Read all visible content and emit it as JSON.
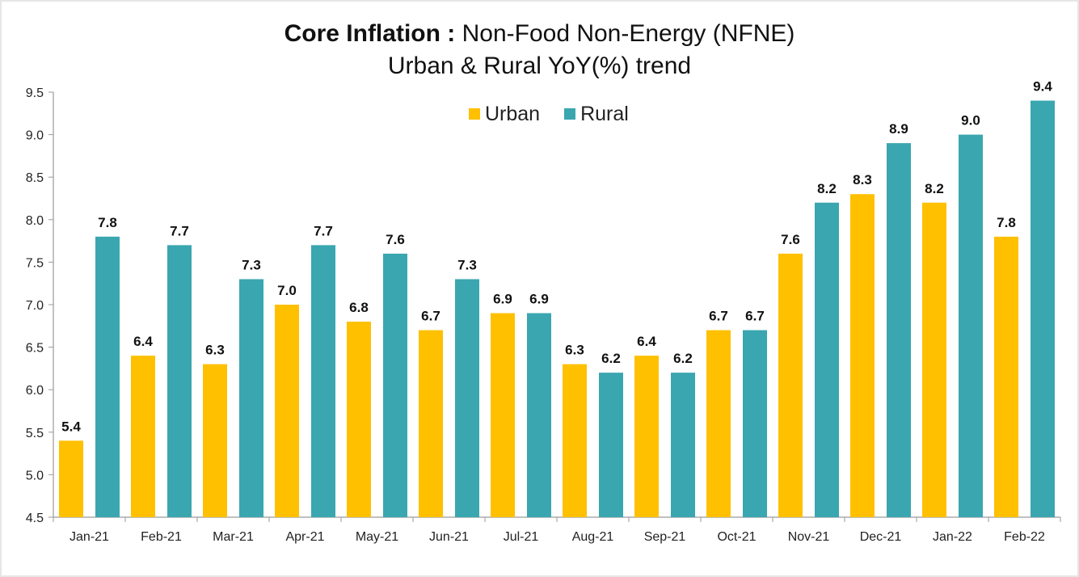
{
  "chart_data": {
    "type": "bar",
    "title_bold": "Core Inflation :",
    "title_rest": "Non-Food Non-Energy (NFNE)",
    "subtitle": "Urban & Rural YoY(%)  trend",
    "categories": [
      "Jan-21",
      "Feb-21",
      "Mar-21",
      "Apr-21",
      "May-21",
      "Jun-21",
      "Jul-21",
      "Aug-21",
      "Sep-21",
      "Oct-21",
      "Nov-21",
      "Dec-21",
      "Jan-22",
      "Feb-22"
    ],
    "series": [
      {
        "name": "Urban",
        "color": "#FFC000",
        "values": [
          5.4,
          6.4,
          6.3,
          7.0,
          6.8,
          6.7,
          6.9,
          6.3,
          6.4,
          6.7,
          7.6,
          8.3,
          8.2,
          7.8
        ]
      },
      {
        "name": "Rural",
        "color": "#3AA6B0",
        "values": [
          7.8,
          7.7,
          7.3,
          7.7,
          7.6,
          7.3,
          6.9,
          6.2,
          6.2,
          6.7,
          8.2,
          8.9,
          9.0,
          9.4
        ]
      }
    ],
    "ylim": [
      4.5,
      9.5
    ],
    "yticks": [
      "4.5",
      "5.0",
      "5.5",
      "6.0",
      "6.5",
      "7.0",
      "7.5",
      "8.0",
      "8.5",
      "9.0",
      "9.5"
    ],
    "legend_position": "top-center",
    "grid": false
  }
}
